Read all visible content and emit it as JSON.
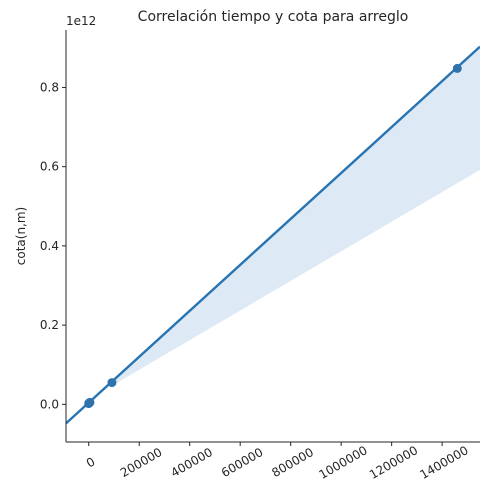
{
  "chart_data": {
    "type": "scatter",
    "title": "Correlación tiempo y cota para arreglo",
    "xlabel": "",
    "ylabel": "cota(n,m)",
    "y_offset_label": "1e12",
    "xlim": [
      -90000,
      1550000
    ],
    "ylim": [
      -0.095,
      0.945
    ],
    "x_ticks": [
      0,
      200000,
      400000,
      600000,
      800000,
      1000000,
      1200000,
      1400000
    ],
    "x_tick_labels": [
      "0",
      "200000",
      "400000",
      "600000",
      "800000",
      "1000000",
      "1200000",
      "1400000"
    ],
    "x_tick_rotation": -30,
    "y_ticks": [
      0.0,
      0.2,
      0.4,
      0.6,
      0.8
    ],
    "y_tick_labels": [
      "0.0",
      "0.2",
      "0.4",
      "0.6",
      "0.8"
    ],
    "points": [
      {
        "x": 0,
        "y": 0.002
      },
      {
        "x": 1000,
        "y": 0.003
      },
      {
        "x": 2500,
        "y": 0.004
      },
      {
        "x": 5000,
        "y": 0.005
      },
      {
        "x": 92000,
        "y": 0.055
      },
      {
        "x": 1460000,
        "y": 0.848
      }
    ],
    "regression": {
      "x_start": -90000,
      "x_end": 1550000,
      "y_start": -0.048,
      "y_end": 0.903
    },
    "confidence_band": {
      "x": [
        92000,
        1550000
      ],
      "upper": [
        0.057,
        0.903
      ],
      "lower": [
        0.047,
        0.592
      ]
    },
    "grid": false,
    "legend": "none",
    "colors": {
      "line": "#2874b2",
      "point": "#2f73ad",
      "band": "#dde9f4",
      "axis": "#262626"
    }
  }
}
